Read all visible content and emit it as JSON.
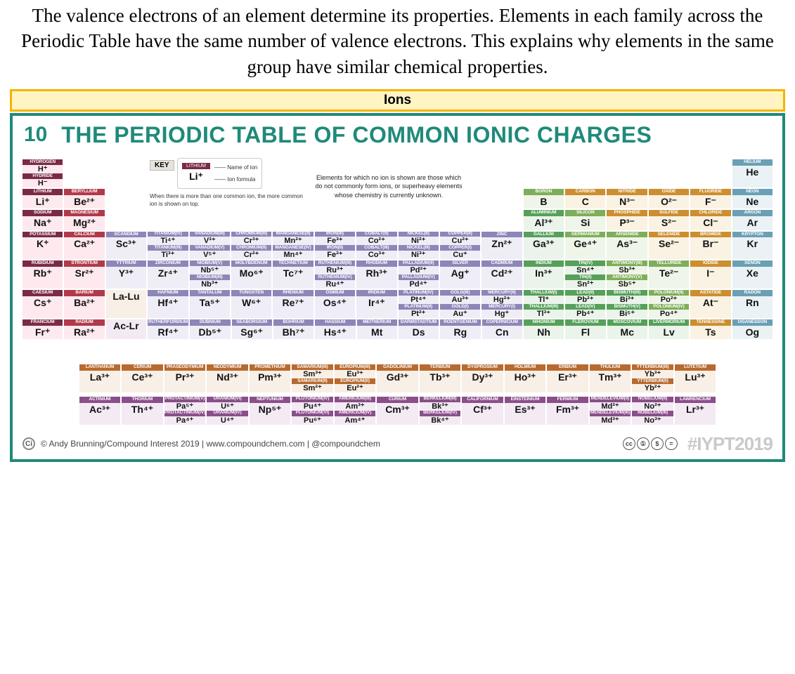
{
  "lead_text": "The valence electrons of an element determine its properties. Elements in each family across the Periodic Table have the same number of valence electrons. This explains why elements in the same group have similar chemical properties.",
  "section_bar": {
    "outer_color": "#f5b400",
    "inner_color": "#fff4c2",
    "label": "Ions"
  },
  "poster": {
    "teal": "#1f8a7a",
    "badge": "10",
    "title": "THE PERIODIC TABLE OF COMMON IONIC CHARGES",
    "key": {
      "title": "KEY",
      "name_label": "Name of ion",
      "formula_label": "Ion formula",
      "example_header": "LITHIUM",
      "example_formula": "Li⁺",
      "note": "When there is more than one common ion, the more common ion is shown on top."
    },
    "explain": "Elements for which no ion is shown are those which do not commonly form ions, or superheavy elements whose chemistry is currently unknown.",
    "footer": {
      "credit": "© Andy Brunning/Compound Interest 2019 | www.compoundchem.com | @compoundchem",
      "hash": "#IYPT2019"
    },
    "colors": {
      "alkali": "#7b2a45",
      "alkaline": "#b03a4a",
      "transition": "#8d86b8",
      "posttrans": "#56a05a",
      "metalloid": "#7eae59",
      "nonmetal": "#cc8e2f",
      "halogen": "#cc8e2f",
      "noble": "#6a9fb5",
      "lan": "#b86a2f",
      "act": "#8a4f8a",
      "t_alkali": "#fde9ee",
      "t_alkaline": "#fde9ee",
      "t_trans": "#efeef7",
      "t_post": "#eaf4ea",
      "t_metalloid": "#eff5e8",
      "t_nonmetal": "#faf2e3",
      "t_noble": "#eaf2f5",
      "t_lan": "#f8efe6",
      "t_act": "#f3eaf3"
    },
    "rows_top": [
      [
        {
          "h": "HYDROGEN",
          "f": "H⁺",
          "c": "alkali",
          "t": "t_alkali",
          "extra": {
            "h2": "HYDRIDE",
            "f2": "H⁻"
          }
        },
        null,
        null,
        null,
        null,
        null,
        null,
        null,
        null,
        null,
        null,
        null,
        null,
        null,
        null,
        null,
        null,
        {
          "h": "HELIUM",
          "f": "He",
          "c": "noble",
          "t": "t_noble"
        }
      ],
      [
        {
          "h": "LITHIUM",
          "f": "Li⁺",
          "c": "alkali",
          "t": "t_alkali"
        },
        {
          "h": "BERYLLIUM",
          "f": "Be²⁺",
          "c": "alkaline",
          "t": "t_alkaline"
        },
        null,
        null,
        null,
        null,
        null,
        null,
        null,
        null,
        null,
        null,
        {
          "h": "BORON",
          "f": "B",
          "c": "metalloid",
          "t": "t_metalloid"
        },
        {
          "h": "CARBON",
          "f": "C",
          "c": "nonmetal",
          "t": "t_nonmetal"
        },
        {
          "h": "NITRIDE",
          "f": "N³⁻",
          "c": "nonmetal",
          "t": "t_nonmetal"
        },
        {
          "h": "OXIDE",
          "f": "O²⁻",
          "c": "nonmetal",
          "t": "t_nonmetal"
        },
        {
          "h": "FLUORIDE",
          "f": "F⁻",
          "c": "nonmetal",
          "t": "t_nonmetal"
        },
        {
          "h": "NEON",
          "f": "Ne",
          "c": "noble",
          "t": "t_noble"
        }
      ],
      [
        {
          "h": "SODIUM",
          "f": "Na⁺",
          "c": "alkali",
          "t": "t_alkali"
        },
        {
          "h": "MAGNESIUM",
          "f": "Mg²⁺",
          "c": "alkaline",
          "t": "t_alkaline"
        },
        null,
        null,
        null,
        null,
        null,
        null,
        null,
        null,
        null,
        null,
        {
          "h": "ALUMINIUM",
          "f": "Al³⁺",
          "c": "posttrans",
          "t": "t_post"
        },
        {
          "h": "SILICON",
          "f": "Si",
          "c": "metalloid",
          "t": "t_metalloid"
        },
        {
          "h": "PHOSPHIDE",
          "f": "P³⁻",
          "c": "nonmetal",
          "t": "t_nonmetal"
        },
        {
          "h": "SULFIDE",
          "f": "S²⁻",
          "c": "nonmetal",
          "t": "t_nonmetal"
        },
        {
          "h": "CHLORIDE",
          "f": "Cl⁻",
          "c": "nonmetal",
          "t": "t_nonmetal"
        },
        {
          "h": "ARGON",
          "f": "Ar",
          "c": "noble",
          "t": "t_noble"
        }
      ],
      [
        {
          "h": "POTASSIUM",
          "f": "K⁺",
          "c": "alkali",
          "t": "t_alkali"
        },
        {
          "h": "CALCIUM",
          "f": "Ca²⁺",
          "c": "alkaline",
          "t": "t_alkaline"
        },
        {
          "h": "SCANDIUM",
          "f": "Sc³⁺",
          "c": "transition",
          "t": "t_trans"
        },
        {
          "h": "TITANIUM(IV)",
          "f": "Ti⁴⁺",
          "c": "transition",
          "t": "t_trans",
          "extra": {
            "h2": "TITANIUM(III)",
            "f2": "Ti³⁺"
          }
        },
        {
          "h": "VANADIUM(III)",
          "f": "V³⁺",
          "c": "transition",
          "t": "t_trans",
          "extra": {
            "h2": "VANADIUM(V)",
            "f2": "V⁵⁺"
          }
        },
        {
          "h": "CHROMIUM(III)",
          "f": "Cr³⁺",
          "c": "transition",
          "t": "t_trans",
          "extra": {
            "h2": "CHROMIUM(II)",
            "f2": "Cr²⁺"
          }
        },
        {
          "h": "MANGANESE(II)",
          "f": "Mn²⁺",
          "c": "transition",
          "t": "t_trans",
          "extra": {
            "h2": "MANGANESE(IV)",
            "f2": "Mn⁴⁺"
          }
        },
        {
          "h": "IRON(III)",
          "f": "Fe³⁺",
          "c": "transition",
          "t": "t_trans",
          "extra": {
            "h2": "IRON(II)",
            "f2": "Fe²⁺"
          }
        },
        {
          "h": "COBALT(II)",
          "f": "Co²⁺",
          "c": "transition",
          "t": "t_trans",
          "extra": {
            "h2": "COBALT(III)",
            "f2": "Co³⁺"
          }
        },
        {
          "h": "NICKEL(II)",
          "f": "Ni²⁺",
          "c": "transition",
          "t": "t_trans",
          "extra": {
            "h2": "NICKEL(III)",
            "f2": "Ni³⁺"
          }
        },
        {
          "h": "COPPER(II)",
          "f": "Cu²⁺",
          "c": "transition",
          "t": "t_trans",
          "extra": {
            "h2": "COPPER(I)",
            "f2": "Cu⁺"
          }
        },
        {
          "h": "ZINC",
          "f": "Zn²⁺",
          "c": "transition",
          "t": "t_trans"
        },
        {
          "h": "GALLIUM",
          "f": "Ga³⁺",
          "c": "posttrans",
          "t": "t_post"
        },
        {
          "h": "GERMANIUM",
          "f": "Ge⁴⁺",
          "c": "metalloid",
          "t": "t_metalloid"
        },
        {
          "h": "ARSENIDE",
          "f": "As³⁻",
          "c": "metalloid",
          "t": "t_metalloid"
        },
        {
          "h": "SELENIDE",
          "f": "Se²⁻",
          "c": "nonmetal",
          "t": "t_nonmetal"
        },
        {
          "h": "BROMIDE",
          "f": "Br⁻",
          "c": "nonmetal",
          "t": "t_nonmetal"
        },
        {
          "h": "KRYPTON",
          "f": "Kr",
          "c": "noble",
          "t": "t_noble"
        }
      ],
      [
        {
          "h": "RUBIDIUM",
          "f": "Rb⁺",
          "c": "alkali",
          "t": "t_alkali"
        },
        {
          "h": "STRONTIUM",
          "f": "Sr²⁺",
          "c": "alkaline",
          "t": "t_alkaline"
        },
        {
          "h": "YTTRIUM",
          "f": "Y³⁺",
          "c": "transition",
          "t": "t_trans"
        },
        {
          "h": "ZIRCONIUM",
          "f": "Zr⁴⁺",
          "c": "transition",
          "t": "t_trans"
        },
        {
          "h": "NIOBIUM(V)",
          "f": "Nb⁵⁺",
          "c": "transition",
          "t": "t_trans",
          "extra": {
            "h2": "NIOBIUM(III)",
            "f2": "Nb³⁺"
          }
        },
        {
          "h": "MOLYBDENUM",
          "f": "Mo⁶⁺",
          "c": "transition",
          "t": "t_trans"
        },
        {
          "h": "TECHNETIUM",
          "f": "Tc⁷⁺",
          "c": "transition",
          "t": "t_trans"
        },
        {
          "h": "RUTHENIUM(III)",
          "f": "Ru³⁺",
          "c": "transition",
          "t": "t_trans",
          "extra": {
            "h2": "RUTHENIUM(IV)",
            "f2": "Ru⁴⁺"
          }
        },
        {
          "h": "RHODIUM",
          "f": "Rh³⁺",
          "c": "transition",
          "t": "t_trans"
        },
        {
          "h": "PALLADIUM(II)",
          "f": "Pd²⁺",
          "c": "transition",
          "t": "t_trans",
          "extra": {
            "h2": "PALLADIUM(IV)",
            "f2": "Pd⁴⁺"
          }
        },
        {
          "h": "SILVER",
          "f": "Ag⁺",
          "c": "transition",
          "t": "t_trans"
        },
        {
          "h": "CADMIUM",
          "f": "Cd²⁺",
          "c": "transition",
          "t": "t_trans"
        },
        {
          "h": "INDIUM",
          "f": "In³⁺",
          "c": "posttrans",
          "t": "t_post"
        },
        {
          "h": "TIN(IV)",
          "f": "Sn⁴⁺",
          "c": "posttrans",
          "t": "t_post",
          "extra": {
            "h2": "TIN(II)",
            "f2": "Sn²⁺"
          }
        },
        {
          "h": "ANTIMONY(III)",
          "f": "Sb³⁺",
          "c": "metalloid",
          "t": "t_metalloid",
          "extra": {
            "h2": "ANTIMONY(V)",
            "f2": "Sb⁵⁺"
          }
        },
        {
          "h": "TELLURIDE",
          "f": "Te²⁻",
          "c": "metalloid",
          "t": "t_metalloid"
        },
        {
          "h": "IODIDE",
          "f": "I⁻",
          "c": "nonmetal",
          "t": "t_nonmetal"
        },
        {
          "h": "XENON",
          "f": "Xe",
          "c": "noble",
          "t": "t_noble"
        }
      ],
      [
        {
          "h": "CAESIUM",
          "f": "Cs⁺",
          "c": "alkali",
          "t": "t_alkali"
        },
        {
          "h": "BARIUM",
          "f": "Ba²⁺",
          "c": "alkaline",
          "t": "t_alkaline"
        },
        {
          "h": "",
          "f": "La-Lu",
          "c": "lan",
          "t": "t_lan",
          "plain": true
        },
        {
          "h": "HAFNIUM",
          "f": "Hf⁴⁺",
          "c": "transition",
          "t": "t_trans"
        },
        {
          "h": "TANTALUM",
          "f": "Ta⁵⁺",
          "c": "transition",
          "t": "t_trans"
        },
        {
          "h": "TUNGSTEN",
          "f": "W⁶⁺",
          "c": "transition",
          "t": "t_trans"
        },
        {
          "h": "RHENIUM",
          "f": "Re⁷⁺",
          "c": "transition",
          "t": "t_trans"
        },
        {
          "h": "OSMIUM",
          "f": "Os⁴⁺",
          "c": "transition",
          "t": "t_trans"
        },
        {
          "h": "IRIDIUM",
          "f": "Ir⁴⁺",
          "c": "transition",
          "t": "t_trans"
        },
        {
          "h": "PLATINUM(IV)",
          "f": "Pt⁴⁺",
          "c": "transition",
          "t": "t_trans",
          "extra": {
            "h2": "PLATINUM(II)",
            "f2": "Pt²⁺"
          }
        },
        {
          "h": "GOLD(III)",
          "f": "Au³⁺",
          "c": "transition",
          "t": "t_trans",
          "extra": {
            "h2": "GOLD(I)",
            "f2": "Au⁺"
          }
        },
        {
          "h": "MERCURY(II)",
          "f": "Hg²⁺",
          "c": "transition",
          "t": "t_trans",
          "extra": {
            "h2": "MERCURY(I)",
            "f2": "Hg⁺"
          }
        },
        {
          "h": "THALLIUM(I)",
          "f": "Tl⁺",
          "c": "posttrans",
          "t": "t_post",
          "extra": {
            "h2": "THALLIUM(III)",
            "f2": "Tl³⁺"
          }
        },
        {
          "h": "LEAD(II)",
          "f": "Pb²⁺",
          "c": "posttrans",
          "t": "t_post",
          "extra": {
            "h2": "LEAD(IV)",
            "f2": "Pb⁴⁺"
          }
        },
        {
          "h": "BISMUTH(III)",
          "f": "Bi³⁺",
          "c": "posttrans",
          "t": "t_post",
          "extra": {
            "h2": "BISMUTH(V)",
            "f2": "Bi⁵⁺"
          }
        },
        {
          "h": "POLONIUM(II)",
          "f": "Po²⁺",
          "c": "metalloid",
          "t": "t_metalloid",
          "extra": {
            "h2": "POLONIUM(IV)",
            "f2": "Po⁴⁺"
          }
        },
        {
          "h": "ASTATIDE",
          "f": "At⁻",
          "c": "nonmetal",
          "t": "t_nonmetal"
        },
        {
          "h": "RADON",
          "f": "Rn",
          "c": "noble",
          "t": "t_noble"
        }
      ],
      [
        {
          "h": "FRANCIUM",
          "f": "Fr⁺",
          "c": "alkali",
          "t": "t_alkali"
        },
        {
          "h": "RADIUM",
          "f": "Ra²⁺",
          "c": "alkaline",
          "t": "t_alkaline"
        },
        {
          "h": "",
          "f": "Ac-Lr",
          "c": "act",
          "t": "t_act",
          "plain": true
        },
        {
          "h": "RUTHERFORDIUM",
          "f": "Rf⁴⁺",
          "c": "transition",
          "t": "t_trans"
        },
        {
          "h": "DUBNIUM",
          "f": "Db⁵⁺",
          "c": "transition",
          "t": "t_trans"
        },
        {
          "h": "SEABORGIUM",
          "f": "Sg⁶⁺",
          "c": "transition",
          "t": "t_trans"
        },
        {
          "h": "BOHRIUM",
          "f": "Bh⁷⁺",
          "c": "transition",
          "t": "t_trans"
        },
        {
          "h": "HASSIUM",
          "f": "Hs⁴⁺",
          "c": "transition",
          "t": "t_trans"
        },
        {
          "h": "MEITNERIUM",
          "f": "Mt",
          "c": "transition",
          "t": "t_trans"
        },
        {
          "h": "DARMSTADTIUM",
          "f": "Ds",
          "c": "transition",
          "t": "t_trans"
        },
        {
          "h": "ROENTGENIUM",
          "f": "Rg",
          "c": "transition",
          "t": "t_trans"
        },
        {
          "h": "COPERNICIUM",
          "f": "Cn",
          "c": "transition",
          "t": "t_trans"
        },
        {
          "h": "NIHONIUM",
          "f": "Nh",
          "c": "posttrans",
          "t": "t_post"
        },
        {
          "h": "FLEROVIUM",
          "f": "Fl",
          "c": "posttrans",
          "t": "t_post"
        },
        {
          "h": "MOSCOVIUM",
          "f": "Mc",
          "c": "posttrans",
          "t": "t_post"
        },
        {
          "h": "LIVERMORIUM",
          "f": "Lv",
          "c": "posttrans",
          "t": "t_post"
        },
        {
          "h": "TENNESSINE",
          "f": "Ts",
          "c": "nonmetal",
          "t": "t_nonmetal"
        },
        {
          "h": "OGANESSON",
          "f": "Og",
          "c": "noble",
          "t": "t_noble"
        }
      ]
    ],
    "lan": [
      {
        "h": "LANTHANUM",
        "f": "La³⁺"
      },
      {
        "h": "CERIUM",
        "f": "Ce³⁺"
      },
      {
        "h": "PRASEODYMIUM",
        "f": "Pr³⁺"
      },
      {
        "h": "NEODYMIUM",
        "f": "Nd³⁺"
      },
      {
        "h": "PROMETHIUM",
        "f": "Pm³⁺"
      },
      {
        "h": "SAMARIUM(III)",
        "f": "Sm³⁺",
        "extra": {
          "h2": "SAMARIUM(II)",
          "f2": "Sm²⁺"
        }
      },
      {
        "h": "EUROPIUM(III)",
        "f": "Eu³⁺",
        "extra": {
          "h2": "EUROPIUM(II)",
          "f2": "Eu²⁺"
        }
      },
      {
        "h": "GADOLINIUM",
        "f": "Gd³⁺"
      },
      {
        "h": "TERBIUM",
        "f": "Tb³⁺"
      },
      {
        "h": "DYSPROSIUM",
        "f": "Dy³⁺"
      },
      {
        "h": "HOLMIUM",
        "f": "Ho³⁺"
      },
      {
        "h": "ERBIUM",
        "f": "Er³⁺"
      },
      {
        "h": "THULIUM",
        "f": "Tm³⁺"
      },
      {
        "h": "YTTERBIUM(III)",
        "f": "Yb³⁺",
        "extra": {
          "h2": "YTTERBIUM(II)",
          "f2": "Yb²⁺"
        }
      },
      {
        "h": "LUTETIUM",
        "f": "Lu³⁺"
      }
    ],
    "act": [
      {
        "h": "ACTINIUM",
        "f": "Ac³⁺"
      },
      {
        "h": "THORIUM",
        "f": "Th⁴⁺"
      },
      {
        "h": "PROTACTINIUM(V)",
        "f": "Pa⁵⁺",
        "extra": {
          "h2": "PROTACTINIUM(IV)",
          "f2": "Pa⁴⁺"
        }
      },
      {
        "h": "URANIUM(VI)",
        "f": "U⁶⁺",
        "extra": {
          "h2": "URANIUM(IV)",
          "f2": "U⁴⁺"
        }
      },
      {
        "h": "NEPTUNIUM",
        "f": "Np⁵⁺"
      },
      {
        "h": "PLUTONIUM(IV)",
        "f": "Pu⁴⁺",
        "extra": {
          "h2": "PLUTONIUM(VI)",
          "f2": "Pu⁶⁺"
        }
      },
      {
        "h": "AMERICIUM(III)",
        "f": "Am³⁺",
        "extra": {
          "h2": "AMERICIUM(IV)",
          "f2": "Am⁴⁺"
        }
      },
      {
        "h": "CURIUM",
        "f": "Cm³⁺"
      },
      {
        "h": "BERKELIUM(III)",
        "f": "Bk³⁺",
        "extra": {
          "h2": "BERKELIUM(IV)",
          "f2": "Bk⁴⁺"
        }
      },
      {
        "h": "CALIFORNIUM",
        "f": "Cf³⁺"
      },
      {
        "h": "EINSTEINIUM",
        "f": "Es³⁺"
      },
      {
        "h": "FERMIUM",
        "f": "Fm³⁺"
      },
      {
        "h": "MENDELEVIUM(II)",
        "f": "Md²⁺",
        "extra": {
          "h2": "MENDELEVIUM(III)",
          "f2": "Md³⁺"
        }
      },
      {
        "h": "NOBELIUM(II)",
        "f": "No²⁺",
        "extra": {
          "h2": "NOBELIUM(III)",
          "f2": "No³⁺"
        }
      },
      {
        "h": "LAWRENCIUM",
        "f": "Lr³⁺"
      }
    ]
  }
}
